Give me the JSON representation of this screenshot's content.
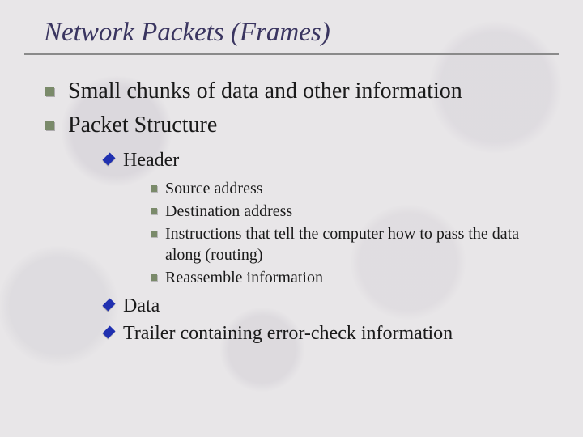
{
  "title": "Network Packets (Frames)",
  "colors": {
    "title_color": "#3a3560",
    "underline_color": "#8a8a8a",
    "bullet_square_color": "#7a8a6a",
    "bullet_diamond_color": "#2030b0",
    "background_color": "#e8e6e8",
    "text_color": "#1a1a1a"
  },
  "typography": {
    "font_family": "Times New Roman",
    "title_fontsize": 33,
    "title_style": "italic",
    "level1_fontsize": 28,
    "level2_fontsize": 24,
    "level3_fontsize": 20
  },
  "bullets": {
    "level1": [
      {
        "text": "Small chunks of data and other information"
      },
      {
        "text": "Packet Structure"
      }
    ],
    "level2": [
      {
        "text": "Header",
        "extra": ""
      },
      {
        "text": "Data",
        "extra": ""
      },
      {
        "text": "Trailer",
        "extra": " containing error-check information"
      }
    ],
    "level3": [
      {
        "text": "Source address"
      },
      {
        "text": "Destination address"
      },
      {
        "text": "Instructions that tell the computer how to pass the data along (routing)"
      },
      {
        "text": "Reassemble information"
      }
    ]
  }
}
